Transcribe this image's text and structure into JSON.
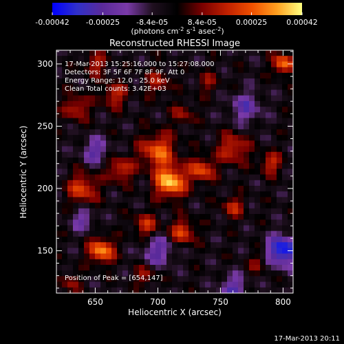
{
  "chart_data": {
    "type": "heatmap",
    "title": "Reconstructed RHESSI Image",
    "xlabel": "Heliocentric X (arcsec)",
    "ylabel": "Heliocentric Y (arcsec)",
    "xlim": [
      619,
      808
    ],
    "ylim": [
      116,
      311
    ],
    "x_ticks": [
      650,
      700,
      750,
      800
    ],
    "y_ticks": [
      150,
      200,
      250,
      300
    ],
    "colorbar": {
      "range": [
        -0.00042,
        0.00042
      ],
      "tick_values": [
        -0.00042,
        -0.00025,
        -8.4e-05,
        8.4e-05,
        0.00025,
        0.00042
      ],
      "tick_labels": [
        "-0.00042",
        "-0.00025",
        "-8.4e-05",
        "8.4e-05",
        "0.00025",
        "0.00042"
      ],
      "unit_label": "(photons cm",
      "unit_exp1": "-2",
      "unit_mid": " s",
      "unit_exp2": "-1",
      "unit_mid2": " asec",
      "unit_exp3": "-2",
      "unit_end": ")",
      "colors": [
        "#0000ff",
        "#3030c8",
        "#5a2a9a",
        "#7a3aa8",
        "#201020",
        "#000000",
        "#7a0000",
        "#c02000",
        "#f05000",
        "#ffa020",
        "#ffff80"
      ]
    },
    "annotations": {
      "time_range": "17-Mar-2013 15:25:16.000 to 15:27:08.000",
      "detectors": "Detectors: 3F 5F 6F 7F 8F 9F, Att 0",
      "energy": "Energy Range: 12.0 - 25.0 keV",
      "clean": "Clean     Total counts: 3.42E+03",
      "peak": "Position of Peak = [654,147]"
    },
    "peak_position": [
      654,
      147
    ],
    "grid": false,
    "timestamp": "17-Mar-2013 20:11"
  }
}
